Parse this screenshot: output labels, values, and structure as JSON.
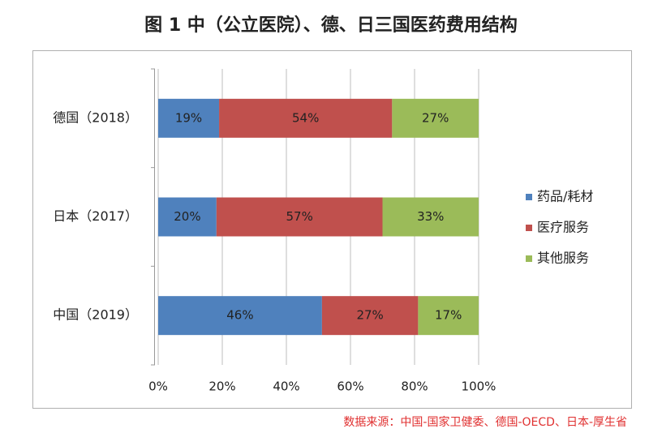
{
  "chart_data": {
    "type": "bar",
    "orientation": "horizontal",
    "stacking": "percent",
    "title": "图 1  中（公立医院）、德、日三国医药费用结构",
    "categories": [
      "德国（2018）",
      "日本（2017）",
      "中国（2019）"
    ],
    "series": [
      {
        "name": "药品/耗材",
        "color": "#4f81bd",
        "values": [
          19,
          20,
          46
        ],
        "value_labels": [
          "19%",
          "20%",
          "46%"
        ]
      },
      {
        "name": "医疗服务",
        "color": "#c0504d",
        "values": [
          54,
          57,
          27
        ],
        "value_labels": [
          "54%",
          "57%",
          "27%"
        ]
      },
      {
        "name": "其他服务",
        "color": "#9bbb59",
        "values": [
          27,
          33,
          17
        ],
        "value_labels": [
          "27%",
          "33%",
          "17%"
        ]
      }
    ],
    "xlim": [
      0,
      100
    ],
    "xticks": [
      {
        "value": 0,
        "label": "0%"
      },
      {
        "value": 20,
        "label": "20%"
      },
      {
        "value": 40,
        "label": "40%"
      },
      {
        "value": 60,
        "label": "60%"
      },
      {
        "value": 80,
        "label": "80%"
      },
      {
        "value": 100,
        "label": "100%"
      }
    ],
    "grid": true,
    "legend": "right",
    "source": "数据来源：中国-国家卫健委、德国-OECD、日本-厚生省"
  }
}
